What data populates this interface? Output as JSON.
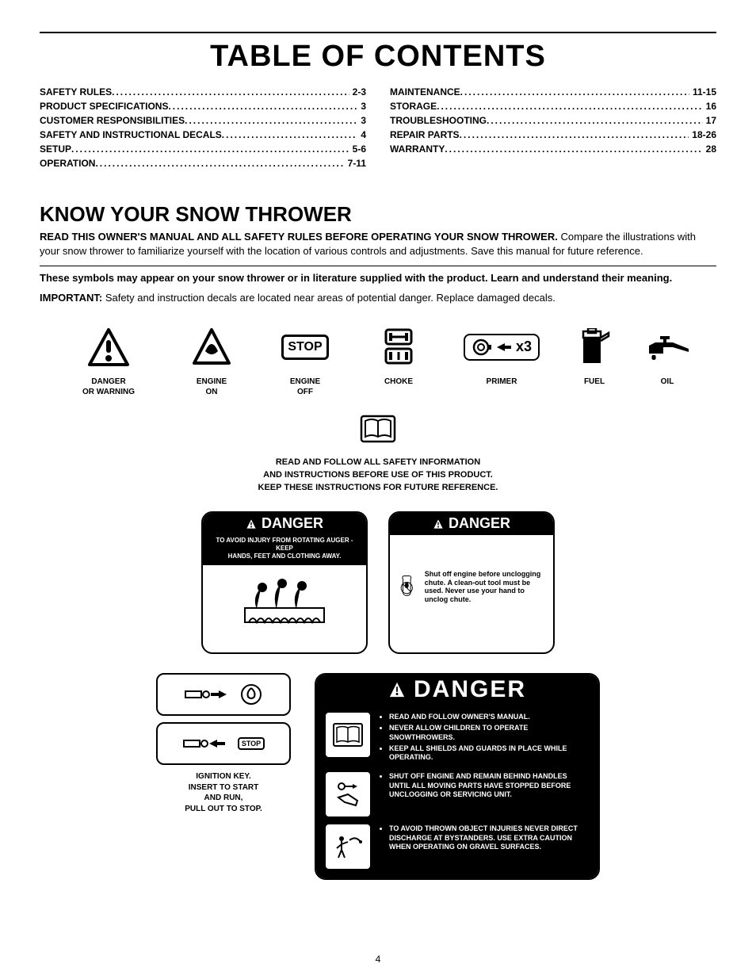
{
  "title": "TABLE OF CONTENTS",
  "toc_left": [
    {
      "label": "SAFETY RULES",
      "page": "2-3"
    },
    {
      "label": "PRODUCT SPECIFICATIONS",
      "page": "3"
    },
    {
      "label": "CUSTOMER RESPONSIBILITIES",
      "page": "3"
    },
    {
      "label": "SAFETY AND INSTRUCTIONAL DECALS",
      "page": "4"
    },
    {
      "label": "SETUP",
      "page": "5-6"
    },
    {
      "label": "OPERATION",
      "page": "7-11"
    }
  ],
  "toc_right": [
    {
      "label": "MAINTENANCE",
      "page": "11-15"
    },
    {
      "label": "STORAGE",
      "page": "16"
    },
    {
      "label": "TROUBLESHOOTING",
      "page": "17"
    },
    {
      "label": "REPAIR PARTS",
      "page": "18-26"
    },
    {
      "label": "WARRANTY",
      "page": "28"
    }
  ],
  "section_heading": "KNOW YOUR SNOW THROWER",
  "intro_bold": "READ THIS OWNER'S MANUAL AND ALL SAFETY RULES BEFORE OPERATING YOUR SNOW THROWER.",
  "intro_rest": " Compare the illustrations with your snow thrower to familiarize yourself with the location of various controls and adjustments. Save this manual for future reference.",
  "symbols_note": "These symbols may appear on your snow thrower or in literature supplied with the product.  Learn and understand their meaning.",
  "important_label": "IMPORTANT:",
  "important_text": " Safety and instruction decals are located near areas of potential danger. Replace damaged decals.",
  "symbols": [
    {
      "name": "danger-icon",
      "label": "DANGER\nOR WARNING"
    },
    {
      "name": "engine-on-icon",
      "label": "ENGINE\nON"
    },
    {
      "name": "engine-off-icon",
      "label": "ENGINE\nOFF",
      "text": "STOP"
    },
    {
      "name": "choke-icon",
      "label": "CHOKE"
    },
    {
      "name": "primer-icon",
      "label": "PRIMER",
      "text": "x3"
    },
    {
      "name": "fuel-icon",
      "label": "FUEL"
    },
    {
      "name": "oil-icon",
      "label": "OIL"
    }
  ],
  "book_text": "READ AND FOLLOW ALL SAFETY INFORMATION\nAND INSTRUCTIONS BEFORE USE OF THIS PRODUCT.\nKEEP THESE INSTRUCTIONS FOR FUTURE REFERENCE.",
  "danger_word": "DANGER",
  "danger_left_sub": "TO AVOID INJURY FROM ROTATING AUGER - KEEP\nHANDS, FEET AND CLOTHING AWAY.",
  "danger_right_text": "Shut off engine before unclogging chute.  A clean-out tool must be used.  Never use your hand to unclog chute.",
  "ignition_label": "IGNITION KEY.\nINSERT TO START\nAND RUN,\nPULL OUT TO STOP.",
  "ignition_stop": "STOP",
  "big_danger": {
    "rows": [
      {
        "items": [
          "READ AND FOLLOW OWNER'S MANUAL.",
          "NEVER ALLOW CHILDREN TO OPERATE SNOWTHROWERS.",
          "KEEP ALL SHIELDS AND GUARDS IN PLACE WHILE OPERATING."
        ]
      },
      {
        "items": [
          "SHUT OFF ENGINE AND REMAIN BEHIND HANDLES UNTIL ALL MOVING PARTS HAVE STOPPED BEFORE UNCLOGGING OR SERVICING UNIT."
        ]
      },
      {
        "items": [
          "TO AVOID THROWN OBJECT INJURIES NEVER DIRECT DISCHARGE AT BYSTANDERS. USE EXTRA CAUTION WHEN OPERATING ON GRAVEL SURFACES."
        ]
      }
    ]
  },
  "page_number": "4",
  "colors": {
    "black": "#000000",
    "white": "#ffffff"
  }
}
